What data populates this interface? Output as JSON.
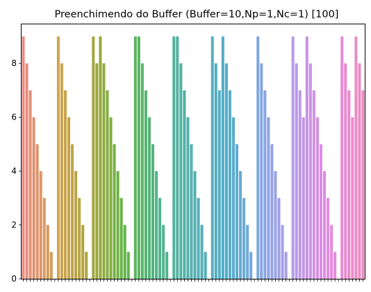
{
  "chart_data": {
    "type": "bar",
    "title": "Preenchimendo do Buffer (Buffer=10,Np=1,Nc=1) [100]",
    "xlabel": "",
    "ylabel": "",
    "ylim": [
      0,
      9.45
    ],
    "yticks": [
      0,
      2,
      4,
      6,
      8
    ],
    "grid": false,
    "x_tick_labels_visible": false,
    "values": [
      9,
      8,
      7,
      6,
      5,
      4,
      3,
      2,
      1,
      0,
      9,
      8,
      7,
      6,
      5,
      4,
      3,
      2,
      1,
      0,
      9,
      8,
      9,
      8,
      7,
      6,
      5,
      4,
      3,
      2,
      1,
      0,
      9,
      9,
      8,
      7,
      6,
      5,
      4,
      3,
      2,
      1,
      0,
      9,
      9,
      8,
      7,
      6,
      5,
      4,
      3,
      2,
      1,
      0,
      9,
      8,
      7,
      9,
      8,
      7,
      6,
      5,
      4,
      3,
      2,
      1,
      0,
      9,
      8,
      7,
      6,
      5,
      4,
      3,
      2,
      1,
      0,
      9,
      8,
      7,
      6,
      9,
      8,
      7,
      6,
      5,
      4,
      3,
      2,
      1,
      0,
      9,
      8,
      7,
      6,
      9,
      8,
      7
    ],
    "palette": "husl",
    "palette_colors": [
      "#e88a80",
      "#d2a251",
      "#a8a63c",
      "#5fb548",
      "#52b38d",
      "#54b0b0",
      "#52acc8",
      "#84a7e2",
      "#b79ae8",
      "#e48ae0",
      "#ec8bbe"
    ]
  }
}
